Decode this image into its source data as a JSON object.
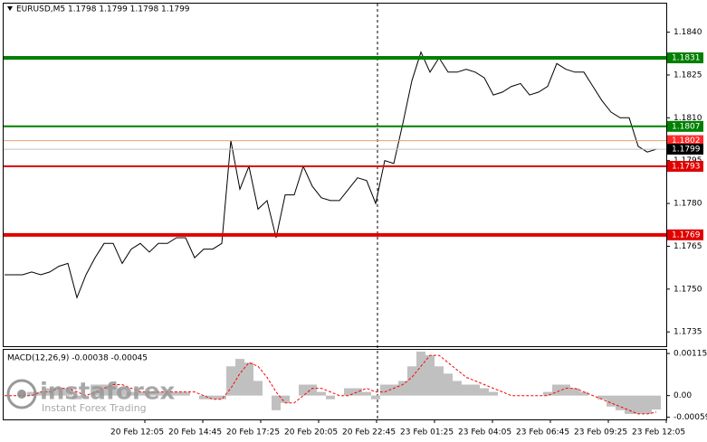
{
  "chart_data": [
    {
      "type": "line",
      "title": "EURUSD,M5  1.1798 1.1799 1.1798 1.1799",
      "color": "#000000",
      "values": [
        1.1755,
        1.1755,
        1.1755,
        1.1756,
        1.1755,
        1.1756,
        1.1758,
        1.1759,
        1.1747,
        1.1755,
        1.1761,
        1.1766,
        1.1766,
        1.1759,
        1.1764,
        1.1766,
        1.1763,
        1.1766,
        1.1766,
        1.1768,
        1.1768,
        1.1761,
        1.1764,
        1.1764,
        1.1766,
        1.1802,
        1.1785,
        1.1793,
        1.1778,
        1.1781,
        1.1768,
        1.1783,
        1.1783,
        1.1793,
        1.1786,
        1.1782,
        1.1781,
        1.1781,
        1.1785,
        1.1789,
        1.1788,
        1.178,
        1.1795,
        1.1794,
        1.1808,
        1.1823,
        1.1833,
        1.1826,
        1.1831,
        1.1826,
        1.1826,
        1.1827,
        1.1826,
        1.1824,
        1.1818,
        1.1819,
        1.1821,
        1.1822,
        1.1818,
        1.1819,
        1.1821,
        1.1829,
        1.1827,
        1.1826,
        1.1826,
        1.1821,
        1.1816,
        1.1812,
        1.181,
        1.181,
        1.18,
        1.1798,
        1.1799
      ],
      "ylim": [
        1.173,
        1.185
      ],
      "yticks": [
        {
          "value": 1.184,
          "label": "1.1840"
        },
        1.1825,
        {
          "value": 1.181,
          "label": "1.1810"
        },
        1.1795,
        {
          "value": 1.178,
          "label": "1.1780"
        },
        1.1765,
        {
          "value": 1.175,
          "label": "1.1750"
        },
        1.1735
      ],
      "levels": [
        {
          "value": 1.1831,
          "color": "#008000",
          "width": 4
        },
        {
          "value": 1.1807,
          "color": "#008000",
          "width": 2
        },
        {
          "value": 1.1793,
          "color": "#e00000",
          "width": 2
        },
        {
          "value": 1.1769,
          "color": "#e00000",
          "width": 4
        }
      ],
      "ask": {
        "value": 1.1802,
        "color": "#e8a070"
      },
      "bid": {
        "value": 1.1799,
        "color": "#000000"
      },
      "x_labels": [
        "20 Feb 12:05",
        "20 Feb 14:45",
        "20 Feb 17:25",
        "20 Feb 20:05",
        "20 Feb 22:45",
        "23 Feb 01:25",
        "23 Feb 04:05",
        "23 Feb 06:45",
        "23 Feb 09:25",
        "23 Feb 12:05"
      ]
    },
    {
      "type": "macd",
      "title": "MACD(12,26,9) -0.00038 -0.00045",
      "series": [
        {
          "color": "#c0c0c0",
          "values": [
            0,
            0,
            0,
            0.0001,
            0.0001,
            0.0002,
            0.0002,
            0.0002,
            -0.0001,
            0,
            0.0003,
            0.0003,
            0.0003,
            0.0002,
            0.0001,
            0.0001,
            0.0001,
            0.0001,
            0.0001,
            0.0001,
            0.0001,
            0,
            -0.0001,
            -0.0001,
            -0.0001,
            0.0008,
            0.001,
            0.0009,
            0.0004,
            0,
            -0.0004,
            -0.0002,
            0,
            0.0003,
            0.0003,
            0.0001,
            -0.0001,
            0,
            0.0002,
            0.0002,
            0.0001,
            -0.0001,
            0.0003,
            0.0003,
            0.0004,
            0.0008,
            0.0012,
            0.0011,
            0.0008,
            0.0006,
            0.0004,
            0.0003,
            0.0003,
            0.0002,
            0.0001,
            0,
            0,
            0,
            0,
            0,
            0.0001,
            0.0003,
            0.0003,
            0.0002,
            0.0001,
            0,
            -0.0001,
            -0.0003,
            -0.0004,
            -0.0005,
            -0.0005,
            -0.0005,
            -0.00038
          ]
        },
        {
          "color": "#ff0000",
          "values": [
            0,
            0,
            0,
            0,
            0.0001,
            0.0001,
            0.0002,
            0.0002,
            0.0001,
            0,
            0.0001,
            0.0002,
            0.0003,
            0.0003,
            0.0002,
            0.0001,
            0.0001,
            0.0001,
            0.0001,
            0.0001,
            0.0001,
            0.0001,
            0,
            -0.0001,
            -0.0001,
            0.0002,
            0.0006,
            0.0009,
            0.0008,
            0.0005,
            0.0001,
            -0.0002,
            -0.0002,
            0,
            0.0002,
            0.0002,
            0.0001,
            0,
            0,
            0.0001,
            0.0002,
            0.0001,
            0.0001,
            0.0002,
            0.0003,
            0.0005,
            0.0008,
            0.0011,
            0.0011,
            0.0009,
            0.0007,
            0.0005,
            0.0004,
            0.0003,
            0.0002,
            0.0001,
            0,
            0,
            0,
            0,
            0,
            0.0001,
            0.0002,
            0.0002,
            0.0001,
            0,
            -0.0001,
            -0.0002,
            -0.0003,
            -0.0004,
            -0.0005,
            -0.0005,
            -0.00045
          ]
        }
      ],
      "ylim": [
        -0.00065,
        0.00125
      ],
      "yticks": [
        0.00115,
        {
          "value": 0,
          "label": "0.00"
        },
        -0.00059
      ]
    }
  ],
  "watermark": {
    "brand": "instaforex",
    "tagline": "Instant Forex Trading"
  }
}
